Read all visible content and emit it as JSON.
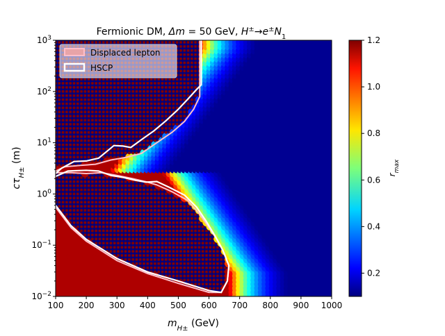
{
  "chart_data": {
    "type": "heatmap",
    "title": "Fermionic DM, Δm = 50 GeV, H± → e± N₁",
    "xlabel": "m_H± (GeV)",
    "ylabel": "cτ_H± (m)",
    "x_scale": "linear",
    "y_scale": "log",
    "xlim": [
      100,
      1000
    ],
    "ylim": [
      0.01,
      1000
    ],
    "x_ticks": [
      "100",
      "200",
      "300",
      "400",
      "500",
      "600",
      "700",
      "800",
      "900",
      "1000"
    ],
    "y_ticks": [
      "10^-2",
      "10^-1",
      "10^0",
      "10^1",
      "10^2",
      "10^3"
    ],
    "colorbar": {
      "label": "r_max",
      "min": 0.1,
      "max": 1.2,
      "ticks": [
        "0.2",
        "0.4",
        "0.6",
        "0.8",
        "1.0",
        "1.2"
      ],
      "colormap": "jet"
    },
    "legend": {
      "position": "top-left",
      "entries": [
        {
          "label": "Displaced lepton",
          "edge_color": "#ffc0cb",
          "fill": "#e8a4a8"
        },
        {
          "label": "HSCP",
          "edge_color": "#ffffff",
          "fill": "none"
        }
      ]
    },
    "contours": [
      {
        "name": "Displaced lepton",
        "color": "#ffc0cb",
        "points": [
          [
            100,
            2.8
          ],
          [
            130,
            3.4
          ],
          [
            180,
            3.6
          ],
          [
            230,
            3.8
          ],
          [
            280,
            4.6
          ],
          [
            330,
            5.2
          ],
          [
            380,
            6.2
          ],
          [
            430,
            10
          ],
          [
            480,
            16
          ],
          [
            520,
            26
          ],
          [
            550,
            45
          ],
          [
            570,
            80
          ],
          [
            570,
            1000
          ]
        ]
      },
      {
        "name": "Displaced lepton",
        "color": "#ffc0cb",
        "points": [
          [
            100,
            2.6
          ],
          [
            150,
            2.6
          ],
          [
            200,
            2.5
          ],
          [
            250,
            2.6
          ],
          [
            300,
            2.3
          ],
          [
            350,
            2.0
          ],
          [
            400,
            1.7
          ],
          [
            430,
            1.5
          ],
          [
            480,
            1.1
          ],
          [
            530,
            0.75
          ],
          [
            570,
            0.4
          ],
          [
            600,
            0.22
          ],
          [
            630,
            0.12
          ],
          [
            650,
            0.07
          ],
          [
            665,
            0.04
          ],
          [
            660,
            0.02
          ],
          [
            640,
            0.012
          ],
          [
            600,
            0.012
          ],
          [
            500,
            0.018
          ],
          [
            400,
            0.028
          ],
          [
            300,
            0.05
          ],
          [
            200,
            0.12
          ],
          [
            150,
            0.22
          ],
          [
            100,
            0.55
          ]
        ]
      },
      {
        "name": "HSCP",
        "color": "#ffffff",
        "points": [
          [
            100,
            2.5
          ],
          [
            120,
            3.2
          ],
          [
            160,
            4.3
          ],
          [
            200,
            4.4
          ],
          [
            240,
            5.0
          ],
          [
            290,
            8.8
          ],
          [
            320,
            8.6
          ],
          [
            345,
            8.1
          ],
          [
            380,
            11.5
          ],
          [
            420,
            17
          ],
          [
            460,
            27
          ],
          [
            500,
            45
          ],
          [
            530,
            70
          ],
          [
            560,
            110
          ],
          [
            575,
            135
          ],
          [
            575,
            1000
          ]
        ]
      },
      {
        "name": "HSCP",
        "color": "#ffffff",
        "points": [
          [
            100,
            2.2
          ],
          [
            140,
            2.8
          ],
          [
            200,
            2.9
          ],
          [
            240,
            2.8
          ],
          [
            280,
            2.3
          ],
          [
            320,
            2.1
          ],
          [
            360,
            1.85
          ],
          [
            395,
            1.7
          ],
          [
            430,
            1.75
          ],
          [
            470,
            1.35
          ],
          [
            520,
            0.95
          ],
          [
            560,
            0.55
          ],
          [
            590,
            0.3
          ],
          [
            620,
            0.15
          ],
          [
            645,
            0.08
          ],
          [
            665,
            0.04
          ],
          [
            660,
            0.02
          ],
          [
            640,
            0.012
          ],
          [
            600,
            0.013
          ],
          [
            500,
            0.02
          ],
          [
            400,
            0.03
          ],
          [
            300,
            0.055
          ],
          [
            200,
            0.13
          ],
          [
            150,
            0.24
          ],
          [
            100,
            0.6
          ]
        ]
      }
    ],
    "excluded_region_r_max": 1.2,
    "background_r_max": 0.12,
    "band_description_points": [
      {
        "x": 300,
        "y": 3.0,
        "r_max": 0.7
      },
      {
        "x": 400,
        "y": 2.5,
        "r_max": 0.4
      },
      {
        "x": 500,
        "y": 2.5,
        "r_max": 0.25
      },
      {
        "x": 600,
        "y": 2.5,
        "r_max": 0.18
      },
      {
        "x": 600,
        "y": 100,
        "r_max": 0.5
      },
      {
        "x": 650,
        "y": 100,
        "r_max": 0.35
      },
      {
        "x": 700,
        "y": 100,
        "r_max": 0.2
      },
      {
        "x": 700,
        "y": 0.1,
        "r_max": 0.5
      },
      {
        "x": 760,
        "y": 0.03,
        "r_max": 0.3
      },
      {
        "x": 850,
        "y": 0.02,
        "r_max": 0.15
      }
    ]
  }
}
